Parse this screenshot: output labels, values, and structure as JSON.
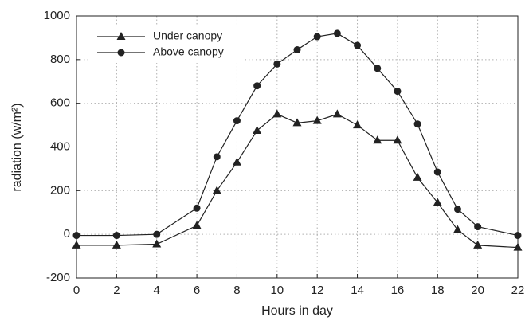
{
  "chart_data": {
    "type": "line",
    "xlabel": "Hours in day",
    "ylabel": "radiation (w/m²)",
    "x": [
      0,
      2,
      4,
      6,
      7,
      8,
      9,
      10,
      11,
      12,
      13,
      14,
      15,
      16,
      17,
      18,
      19,
      20,
      22
    ],
    "series": [
      {
        "name": "Under canopy",
        "color": "#222222",
        "marker": "triangle",
        "values": [
          -50,
          -50,
          -45,
          40,
          200,
          330,
          475,
          550,
          510,
          520,
          550,
          500,
          430,
          430,
          260,
          145,
          20,
          -50,
          -60
        ]
      },
      {
        "name": "Above canopy",
        "color": "#222222",
        "marker": "circle",
        "values": [
          -5,
          -5,
          0,
          120,
          355,
          520,
          680,
          780,
          845,
          905,
          920,
          865,
          760,
          655,
          505,
          285,
          115,
          35,
          -5
        ]
      }
    ],
    "xlim": [
      0,
      22
    ],
    "xticks": [
      0,
      2,
      4,
      6,
      8,
      10,
      12,
      14,
      16,
      18,
      20,
      22
    ],
    "ylim": [
      -200,
      1000
    ],
    "yticks": [
      -200,
      0,
      200,
      400,
      600,
      800,
      1000
    ],
    "grid": true,
    "legend": "upper left"
  }
}
